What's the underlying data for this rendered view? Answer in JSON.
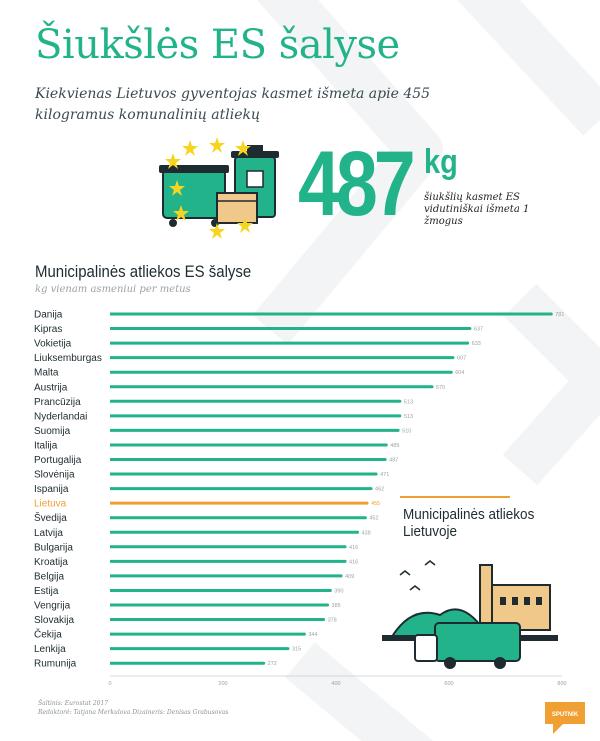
{
  "header": {
    "title": "Šiukšlės ES šalyse",
    "subtitle": "Kiekvienas Lietuvos gyventojas kasmet išmeta apie 455 kilogramus komunalinių atliekų"
  },
  "headline": {
    "value": "487",
    "unit": "kg",
    "note": "šiukšlių kasmet ES vidutiniškai išmeta 1 žmogus"
  },
  "chart_header": {
    "title": "Municipalinės atliekos ES šalyse",
    "subtitle": "kg vienam asmeniui per metus"
  },
  "colors": {
    "accent": "#22b38a",
    "highlight": "#f0a032",
    "text": "#1e2b30",
    "muted": "#9aa3a8"
  },
  "chart_data": {
    "type": "bar",
    "orientation": "horizontal",
    "categories": [
      "Danija",
      "Kipras",
      "Vokietija",
      "Liuksemburgas",
      "Malta",
      "Austrija",
      "Prancūzija",
      "Nyderlandai",
      "Suomija",
      "Italija",
      "Portugalija",
      "Slovėnija",
      "Ispanija",
      "Lietuva",
      "Švedija",
      "Latvija",
      "Bulgarija",
      "Kroatija",
      "Belgija",
      "Estija",
      "Vengrija",
      "Slovakija",
      "Čekija",
      "Lenkija",
      "Rumunija"
    ],
    "values": [
      781,
      637,
      633,
      607,
      604,
      570,
      513,
      513,
      510,
      489,
      487,
      471,
      462,
      455,
      452,
      438,
      416,
      416,
      409,
      390,
      385,
      378,
      344,
      315,
      272
    ],
    "value_labels": [
      "781",
      "637",
      "633",
      "607",
      "604",
      "570",
      "513",
      "513",
      "510",
      "489",
      "487",
      "471",
      "462",
      "455",
      "452",
      "438",
      "416",
      "416",
      "409",
      "390",
      "385",
      "378",
      "344",
      "315",
      "272"
    ],
    "highlight_category": "Lietuva",
    "xlim": [
      0,
      800
    ],
    "xticks": [
      "0",
      "200",
      "400",
      "600",
      "800"
    ],
    "title": "Municipalinės atliekos ES šalyse",
    "xlabel": "",
    "ylabel": ""
  },
  "inset": {
    "label": "Municipalinės atliekos Lietuvoje"
  },
  "footer": {
    "source": "Šaltinis: Eurostat 2017",
    "credits": "Redaktorė: Tatjana Merkulova Dizaineris: Denisas Grabusovas",
    "brand": "SPUTNIK"
  }
}
